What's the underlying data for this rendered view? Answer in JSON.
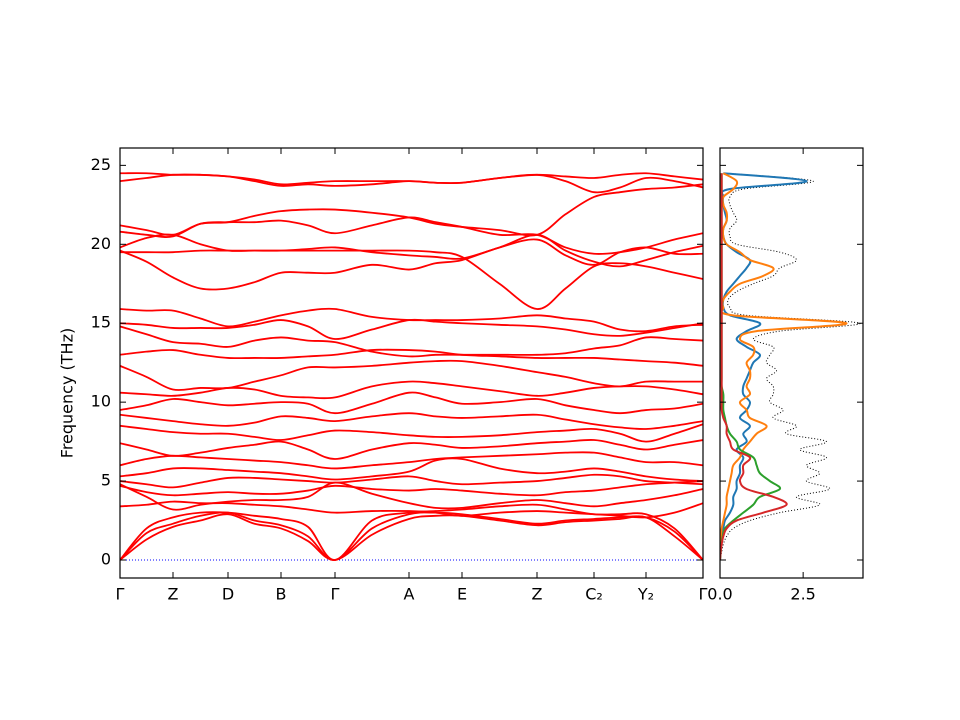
{
  "chart_data": [
    {
      "type": "line",
      "ylabel": "Frequency (THz)",
      "x": [
        0,
        0.265,
        0.53,
        0.805,
        1.08,
        1.345,
        1.61,
        1.88,
        2.15,
        2.52,
        2.89,
        3.155,
        3.42,
        3.795,
        4.17,
        4.455,
        4.74,
        5.0,
        5.26,
        5.545,
        5.83
      ],
      "xlim": [
        0,
        5.83
      ],
      "xticks": [
        {
          "value": 0,
          "label": "Γ"
        },
        {
          "value": 0.53,
          "label": "Z"
        },
        {
          "value": 1.08,
          "label": "D"
        },
        {
          "value": 1.61,
          "label": "B"
        },
        {
          "value": 2.15,
          "label": "Γ"
        },
        {
          "value": 2.89,
          "label": "A"
        },
        {
          "value": 3.42,
          "label": "E"
        },
        {
          "value": 4.17,
          "label": "Z"
        },
        {
          "value": 4.74,
          "label": "C₂"
        },
        {
          "value": 5.26,
          "label": "Y₂"
        },
        {
          "value": 5.83,
          "label": "Γ"
        }
      ],
      "ylim": [
        -1.14,
        26.1
      ],
      "yticks": [
        0,
        5,
        10,
        15,
        20,
        25
      ],
      "series": [
        {
          "color": "#ff0000",
          "values": [
            24.5,
            24.5,
            24.4,
            24.4,
            24.3,
            24.1,
            23.8,
            23.9,
            24.0,
            24.0,
            24.0,
            23.9,
            23.9,
            24.2,
            24.4,
            24.3,
            24.2,
            24.4,
            24.5,
            24.3,
            24.1
          ]
        },
        {
          "color": "#ff0000",
          "values": [
            24.0,
            24.2,
            24.4,
            24.4,
            24.3,
            24.0,
            23.7,
            23.8,
            23.7,
            23.8,
            24.0,
            23.9,
            23.9,
            24.2,
            24.4,
            24.0,
            23.3,
            23.6,
            24.2,
            24.0,
            23.6
          ]
        },
        {
          "color": "#ff0000",
          "values": [
            21.2,
            20.9,
            20.6,
            21.3,
            21.4,
            21.8,
            22.1,
            22.2,
            22.2,
            22.0,
            21.7,
            21.3,
            21.1,
            20.9,
            20.6,
            21.9,
            23.0,
            23.3,
            23.5,
            23.6,
            23.8
          ]
        },
        {
          "color": "#ff0000",
          "values": [
            20.8,
            20.6,
            20.5,
            21.3,
            21.4,
            21.4,
            21.5,
            21.2,
            20.7,
            21.2,
            21.7,
            21.4,
            21.1,
            20.6,
            20.6,
            19.8,
            19.4,
            19.5,
            19.8,
            20.3,
            20.7
          ]
        },
        {
          "color": "#ff0000",
          "values": [
            19.8,
            20.4,
            20.6,
            20.0,
            19.6,
            19.6,
            19.6,
            19.7,
            19.8,
            19.5,
            19.3,
            19.2,
            19.1,
            19.8,
            20.6,
            19.6,
            18.9,
            18.6,
            19.0,
            19.5,
            19.9
          ]
        },
        {
          "color": "#ff0000",
          "values": [
            19.5,
            19.5,
            19.5,
            19.6,
            19.6,
            19.6,
            19.6,
            19.6,
            19.6,
            19.6,
            19.6,
            19.5,
            19.2,
            17.5,
            15.9,
            17.2,
            18.6,
            18.8,
            18.6,
            18.2,
            17.8
          ]
        },
        {
          "color": "#ff0000",
          "values": [
            19.6,
            18.9,
            17.9,
            17.2,
            17.2,
            17.6,
            18.2,
            18.2,
            18.2,
            18.7,
            18.4,
            18.8,
            19.0,
            19.8,
            20.3,
            19.3,
            18.7,
            19.5,
            19.8,
            19.4,
            19.4
          ]
        },
        {
          "color": "#ff0000",
          "values": [
            15.9,
            15.8,
            15.8,
            15.3,
            14.8,
            15.1,
            15.5,
            15.8,
            15.9,
            15.4,
            15.2,
            15.2,
            15.2,
            15.3,
            15.5,
            15.3,
            15.1,
            14.6,
            14.5,
            14.8,
            14.9
          ]
        },
        {
          "color": "#ff0000",
          "values": [
            15.0,
            14.9,
            14.7,
            14.7,
            14.7,
            14.9,
            15.2,
            14.8,
            14.0,
            14.6,
            15.2,
            15.1,
            15.0,
            14.9,
            14.8,
            14.6,
            14.3,
            14.2,
            14.4,
            14.7,
            15.0
          ]
        },
        {
          "color": "#ff0000",
          "values": [
            14.8,
            14.3,
            13.8,
            13.7,
            13.5,
            13.9,
            14.1,
            13.9,
            13.8,
            13.2,
            12.9,
            13.0,
            13.0,
            13.0,
            13.0,
            13.1,
            13.4,
            13.6,
            14.1,
            14.0,
            13.9
          ]
        },
        {
          "color": "#ff0000",
          "values": [
            13.0,
            13.2,
            13.3,
            13.0,
            12.8,
            12.8,
            12.8,
            12.9,
            13.0,
            13.3,
            13.3,
            13.2,
            13.0,
            12.9,
            12.8,
            12.8,
            12.8,
            12.7,
            12.6,
            12.5,
            12.3
          ]
        },
        {
          "color": "#ff0000",
          "values": [
            12.3,
            11.6,
            10.8,
            10.9,
            10.9,
            11.3,
            11.7,
            12.2,
            12.2,
            12.3,
            12.5,
            12.6,
            12.6,
            12.3,
            11.9,
            11.6,
            11.2,
            11.0,
            11.3,
            11.3,
            11.3
          ]
        },
        {
          "color": "#ff0000",
          "values": [
            10.6,
            10.5,
            10.4,
            10.6,
            10.9,
            10.8,
            10.4,
            10.3,
            10.3,
            11.0,
            11.3,
            11.2,
            11.0,
            10.7,
            10.4,
            10.6,
            10.9,
            11.0,
            11.0,
            10.8,
            10.5
          ]
        },
        {
          "color": "#ff0000",
          "values": [
            9.5,
            9.8,
            10.2,
            10.0,
            9.8,
            9.9,
            10.0,
            9.9,
            9.3,
            9.9,
            10.6,
            10.3,
            9.9,
            10.0,
            10.2,
            9.8,
            9.5,
            9.3,
            9.5,
            9.6,
            9.9
          ]
        },
        {
          "color": "#ff0000",
          "values": [
            9.2,
            9.0,
            8.8,
            8.6,
            8.5,
            8.7,
            9.1,
            9.0,
            8.8,
            9.1,
            9.3,
            9.1,
            9.0,
            9.1,
            9.2,
            8.9,
            8.6,
            8.4,
            8.3,
            8.5,
            8.8
          ]
        },
        {
          "color": "#ff0000",
          "values": [
            8.5,
            8.3,
            8.1,
            8.0,
            8.0,
            7.8,
            7.6,
            7.9,
            8.2,
            8.1,
            7.9,
            7.8,
            7.8,
            7.9,
            8.1,
            8.2,
            8.3,
            8.0,
            7.5,
            8.0,
            8.6
          ]
        },
        {
          "color": "#ff0000",
          "values": [
            7.4,
            7.0,
            6.6,
            6.8,
            7.1,
            7.3,
            7.5,
            7.0,
            6.4,
            7.0,
            7.4,
            7.3,
            7.1,
            7.2,
            7.4,
            7.5,
            7.6,
            7.3,
            7.0,
            7.3,
            7.6
          ]
        },
        {
          "color": "#ff0000",
          "values": [
            6.0,
            6.4,
            6.6,
            6.5,
            6.4,
            6.3,
            6.2,
            6.0,
            5.8,
            6.0,
            6.2,
            6.4,
            6.5,
            6.6,
            6.7,
            6.8,
            6.8,
            6.5,
            6.2,
            6.2,
            6.0
          ]
        },
        {
          "color": "#ff0000",
          "values": [
            5.3,
            5.5,
            5.8,
            5.8,
            5.7,
            5.6,
            5.5,
            5.3,
            5.1,
            5.3,
            5.6,
            6.3,
            6.4,
            5.8,
            5.5,
            5.6,
            5.8,
            5.6,
            5.3,
            5.1,
            5.0
          ]
        },
        {
          "color": "#ff0000",
          "values": [
            5.0,
            4.8,
            4.6,
            4.9,
            5.2,
            5.2,
            5.1,
            5.0,
            4.9,
            5.1,
            5.3,
            5.0,
            4.8,
            4.9,
            5.0,
            5.2,
            5.4,
            5.3,
            5.0,
            4.9,
            4.8
          ]
        },
        {
          "color": "#ff0000",
          "values": [
            4.7,
            4.3,
            4.1,
            4.2,
            4.3,
            4.2,
            4.2,
            4.4,
            4.7,
            4.5,
            4.4,
            4.5,
            4.4,
            4.2,
            4.1,
            4.3,
            4.4,
            4.6,
            4.8,
            4.9,
            5.0
          ]
        },
        {
          "color": "#ff0000",
          "values": [
            4.8,
            4.0,
            3.2,
            3.5,
            3.7,
            3.8,
            3.8,
            4.0,
            4.9,
            4.2,
            3.6,
            3.3,
            3.3,
            3.6,
            3.8,
            3.6,
            3.4,
            3.6,
            3.8,
            4.1,
            4.5
          ]
        },
        {
          "color": "#ff0000",
          "values": [
            3.4,
            3.5,
            3.7,
            3.6,
            3.6,
            3.5,
            3.4,
            3.2,
            3.0,
            3.1,
            3.1,
            3.0,
            2.8,
            3.0,
            3.1,
            3.0,
            2.9,
            2.8,
            2.7,
            3.0,
            3.6
          ]
        },
        {
          "color": "#ff0000",
          "values": [
            0,
            2.0,
            2.7,
            3.0,
            3.0,
            2.8,
            2.6,
            2.1,
            0,
            2.5,
            3.0,
            3.1,
            3.2,
            3.4,
            3.5,
            3.2,
            2.9,
            2.9,
            2.9,
            2.0,
            0
          ]
        },
        {
          "color": "#ff0000",
          "values": [
            0,
            1.7,
            2.3,
            2.8,
            3.0,
            2.5,
            2.2,
            1.5,
            0,
            2.0,
            2.9,
            3.0,
            2.9,
            2.6,
            2.3,
            2.5,
            2.6,
            2.7,
            2.7,
            1.8,
            0
          ]
        },
        {
          "color": "#ff0000",
          "values": [
            0,
            1.3,
            2.1,
            2.5,
            2.9,
            2.3,
            2.0,
            1.2,
            0,
            1.6,
            2.6,
            2.8,
            2.8,
            2.5,
            2.2,
            2.4,
            2.5,
            2.6,
            2.7,
            1.5,
            0
          ]
        }
      ]
    },
    {
      "type": "dos",
      "y": [
        0,
        0.5,
        1,
        1.5,
        2,
        2.5,
        3,
        3.5,
        4,
        4.5,
        5,
        5.5,
        6,
        6.5,
        7,
        7.5,
        8,
        8.5,
        9,
        9.5,
        10,
        10.5,
        11,
        11.5,
        12,
        12.5,
        13,
        13.5,
        14,
        14.5,
        15,
        15.5,
        16,
        16.5,
        17,
        17.5,
        18,
        18.5,
        19,
        19.5,
        20,
        20.5,
        21,
        21.5,
        22,
        22.5,
        23,
        23.5,
        24,
        24.5
      ],
      "xlim": [
        0,
        4.3
      ],
      "xticks": [
        {
          "value": 0,
          "label": "0.0"
        },
        {
          "value": 2.5,
          "label": "2.5"
        }
      ],
      "ylim": [
        -1.14,
        26.1
      ],
      "yticks": [
        0,
        5,
        10,
        15,
        20,
        25
      ],
      "series": [
        {
          "color": "#000000",
          "linestyle": "dotted",
          "values": [
            0,
            0.05,
            0.1,
            0.2,
            0.4,
            0.9,
            1.8,
            3.0,
            2.3,
            3.3,
            2.6,
            3.0,
            2.6,
            3.2,
            2.4,
            3.2,
            2.0,
            2.3,
            1.6,
            1.9,
            1.5,
            1.6,
            1.6,
            1.4,
            1.7,
            1.4,
            1.5,
            1.6,
            1.0,
            1.8,
            4.2,
            0.8,
            0.3,
            0.25,
            0.5,
            1.0,
            1.6,
            1.8,
            2.3,
            1.8,
            0.5,
            0.3,
            0.3,
            0.5,
            0.4,
            0.3,
            0.3,
            0.7,
            2.8,
            0.2
          ]
        },
        {
          "color": "#1f77b4",
          "linestyle": "solid",
          "values": [
            0,
            0.02,
            0.03,
            0.05,
            0.1,
            0.15,
            0.3,
            0.4,
            0.4,
            0.5,
            0.5,
            0.6,
            0.6,
            0.7,
            0.5,
            0.8,
            0.7,
            0.9,
            0.6,
            0.8,
            0.9,
            0.7,
            0.7,
            0.8,
            0.9,
            1.0,
            1.2,
            0.8,
            0.5,
            0.8,
            1.2,
            0.3,
            0.1,
            0.1,
            0.2,
            0.4,
            0.6,
            0.8,
            0.9,
            0.5,
            0.2,
            0.1,
            0.1,
            0.2,
            0.15,
            0.1,
            0.1,
            0.3,
            2.6,
            0.1
          ]
        },
        {
          "color": "#ff7f0e",
          "linestyle": "solid",
          "values": [
            0,
            0.01,
            0.02,
            0.03,
            0.05,
            0.1,
            0.15,
            0.2,
            0.2,
            0.25,
            0.3,
            0.35,
            0.4,
            0.6,
            0.7,
            0.9,
            1.1,
            1.4,
            0.9,
            0.8,
            0.6,
            0.9,
            0.8,
            0.9,
            0.9,
            0.8,
            1.0,
            1.0,
            0.6,
            1.1,
            3.8,
            0.4,
            0.1,
            0.1,
            0.3,
            0.6,
            1.3,
            1.6,
            0.9,
            0.6,
            0.2,
            0.1,
            0.1,
            0.2,
            0.2,
            0.1,
            0.1,
            0.4,
            0.5,
            0.1
          ]
        },
        {
          "color": "#2ca02c",
          "linestyle": "solid",
          "values": [
            0,
            0.02,
            0.04,
            0.08,
            0.15,
            0.4,
            0.7,
            1.0,
            1.2,
            1.8,
            1.5,
            1.2,
            1.1,
            1.0,
            0.6,
            0.5,
            0.3,
            0.2,
            0.15,
            0.1,
            0.1,
            0.1,
            0.05,
            0.05,
            0.05,
            0.05,
            0.05,
            0.05,
            0.05,
            0.05,
            0.05,
            0.05,
            0.05,
            0.05,
            0.05,
            0.05,
            0.05,
            0.05,
            0.05,
            0.05,
            0.05,
            0.05,
            0.05,
            0.05,
            0.05,
            0.05,
            0.05,
            0.05,
            0.05,
            0.05
          ]
        },
        {
          "color": "#d62728",
          "linestyle": "solid",
          "values": [
            0,
            0.02,
            0.05,
            0.1,
            0.2,
            0.5,
            1.3,
            2.0,
            1.6,
            0.8,
            0.6,
            0.7,
            0.7,
            0.9,
            0.4,
            0.3,
            0.2,
            0.2,
            0.1,
            0.05,
            0.05,
            0.05,
            0.05,
            0.05,
            0.05,
            0.05,
            0.05,
            0.05,
            0.05,
            0.05,
            0.05,
            0.05,
            0.05,
            0.05,
            0.05,
            0.05,
            0.05,
            0.05,
            0.05,
            0.05,
            0.05,
            0.05,
            0.05,
            0.05,
            0.05,
            0.05,
            0.05,
            0.05,
            0.05,
            0.05
          ]
        }
      ]
    }
  ]
}
